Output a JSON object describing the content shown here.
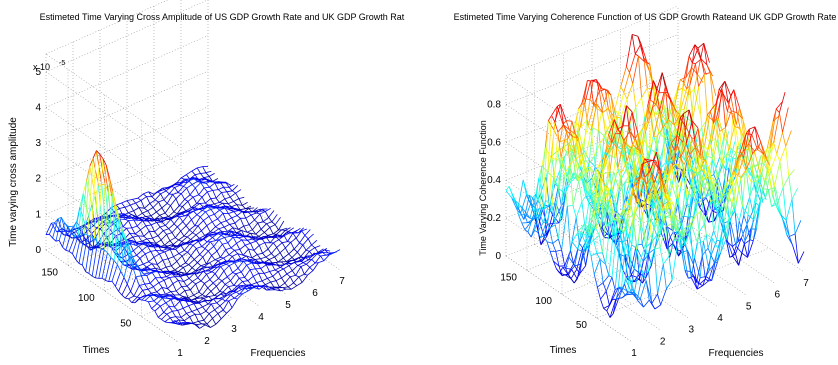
{
  "chart_data": [
    {
      "type": "surface",
      "title": "Estimeted Time Varying Cross Amplitude of US GDP Growth Rate and UK GDP Growth Rat",
      "xlabel": "Frequencies",
      "ylabel": "Times",
      "zlabel": "Time varying cross amplitude",
      "z_exponent_label": "x 10",
      "z_exponent_power": "-5",
      "x_ticks": [
        "1",
        "2",
        "3",
        "4",
        "5",
        "6",
        "7"
      ],
      "y_ticks": [
        "50",
        "100",
        "150"
      ],
      "z_ticks": [
        "0",
        "1",
        "2",
        "3",
        "4",
        "5"
      ],
      "xlim": [
        1,
        7
      ],
      "ylim": [
        0,
        180
      ],
      "zlim": [
        0,
        5.5
      ],
      "grid": true,
      "colormap": "jet",
      "peak": {
        "x": 1.3,
        "y": 120,
        "z": 3.6
      }
    },
    {
      "type": "surface",
      "title": "Estimeted Time Varying Coherence Function of US GDP Growth Rateand UK GDP Growth Rate",
      "xlabel": "Frequencies",
      "ylabel": "Times",
      "zlabel": "Time Varying Coherence Function",
      "x_ticks": [
        "1",
        "2",
        "3",
        "4",
        "5",
        "6",
        "7"
      ],
      "y_ticks": [
        "50",
        "100",
        "150"
      ],
      "z_ticks": [
        "0",
        "0.2",
        "0.4",
        "0.6",
        "0.8"
      ],
      "xlim": [
        1,
        7
      ],
      "ylim": [
        0,
        180
      ],
      "zlim": [
        0,
        0.95
      ],
      "grid": true,
      "colormap": "jet",
      "peak": {
        "x": 4.5,
        "y": 140,
        "z": 0.92
      }
    }
  ]
}
